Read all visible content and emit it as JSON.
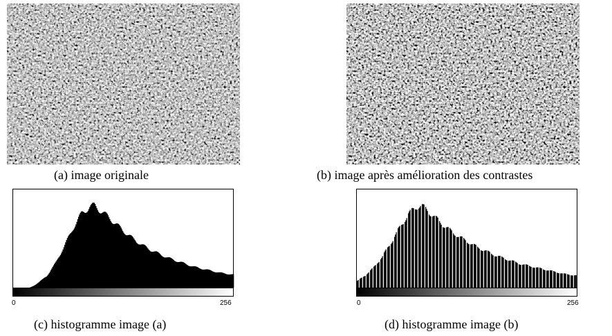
{
  "figure": {
    "image_a": {
      "caption": "(a) image originale"
    },
    "image_b": {
      "caption": "(b) image après amélioration  des contrastes"
    },
    "histogram_a": {
      "caption": "(c) histogramme image (a)",
      "axis_min": "0",
      "axis_max": "256"
    },
    "histogram_b": {
      "caption": "(d) histogramme image (b)",
      "axis_min": "0",
      "axis_max": "256"
    }
  },
  "chart_data": [
    {
      "type": "area",
      "title": "",
      "xlabel": "",
      "ylabel": "",
      "x_tick_labels": [
        "0",
        "256"
      ],
      "xlim": [
        0,
        256
      ],
      "ylim": [
        0,
        1
      ],
      "grayscale_bar": true,
      "series": [
        {
          "x": [
            0,
            20,
            25,
            30,
            40,
            50,
            60,
            70,
            80,
            90,
            95,
            100,
            110,
            120,
            130,
            140,
            150,
            160,
            170,
            180,
            190,
            200,
            210,
            220,
            230,
            240,
            256
          ],
          "y": [
            0.0,
            0.0,
            0.02,
            0.05,
            0.12,
            0.25,
            0.42,
            0.6,
            0.75,
            0.82,
            0.83,
            0.79,
            0.72,
            0.64,
            0.56,
            0.49,
            0.43,
            0.38,
            0.34,
            0.3,
            0.27,
            0.24,
            0.21,
            0.19,
            0.17,
            0.15,
            0.13
          ]
        }
      ]
    },
    {
      "type": "area",
      "title": "",
      "xlabel": "",
      "ylabel": "",
      "x_tick_labels": [
        "0",
        "256"
      ],
      "xlim": [
        0,
        256
      ],
      "ylim": [
        0,
        1
      ],
      "grayscale_bar": true,
      "comb_gaps": true,
      "series": [
        {
          "x": [
            0,
            10,
            20,
            30,
            40,
            50,
            60,
            70,
            75,
            80,
            90,
            100,
            110,
            120,
            130,
            140,
            150,
            160,
            170,
            180,
            190,
            200,
            210,
            220,
            230,
            240,
            256
          ],
          "y": [
            0.06,
            0.12,
            0.2,
            0.31,
            0.45,
            0.6,
            0.74,
            0.82,
            0.83,
            0.8,
            0.72,
            0.64,
            0.57,
            0.51,
            0.46,
            0.41,
            0.37,
            0.33,
            0.3,
            0.27,
            0.24,
            0.22,
            0.2,
            0.18,
            0.16,
            0.14,
            0.12
          ]
        }
      ]
    }
  ]
}
